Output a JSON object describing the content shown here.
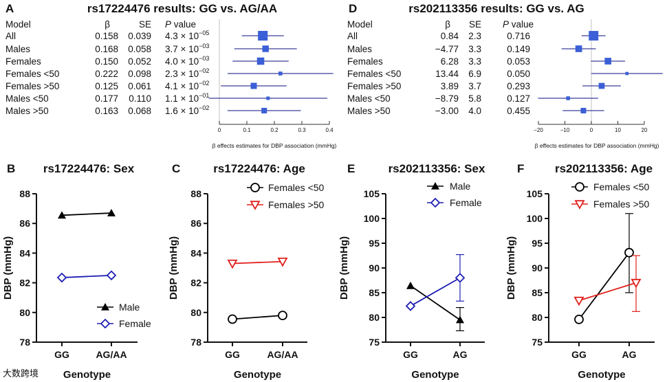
{
  "watermark": "大数跨境",
  "chart_data": [
    {
      "type": "forest",
      "panel": "A",
      "title": "rs17224476 results: GG vs. AG/AA",
      "headers": {
        "model": "Model",
        "beta": "β",
        "se": "SE",
        "p": "P",
        "p_suffix": " value"
      },
      "rows": [
        {
          "model": "All",
          "beta": 0.158,
          "beta_text": "0.158",
          "se_text": "0.039",
          "se": 0.039,
          "p": "4.3 × 10",
          "p_exp": "−05"
        },
        {
          "model": "Males",
          "beta": 0.168,
          "beta_text": "0.168",
          "se_text": "0.058",
          "se": 0.058,
          "p": "3.7 × 10",
          "p_exp": "−03"
        },
        {
          "model": "Females",
          "beta": 0.15,
          "beta_text": "0.150",
          "se_text": "0.052",
          "se": 0.052,
          "p": "4.0 × 10",
          "p_exp": "−03"
        },
        {
          "model": "Females <50",
          "beta": 0.222,
          "beta_text": "0.222",
          "se_text": "0.098",
          "se": 0.098,
          "p": "2.3 × 10",
          "p_exp": "−02"
        },
        {
          "model": "Females >50",
          "beta": 0.125,
          "beta_text": "0.125",
          "se_text": "0.061",
          "se": 0.061,
          "p": "4.1 × 10",
          "p_exp": "−02"
        },
        {
          "model": "Males <50",
          "beta": 0.177,
          "beta_text": "0.177",
          "se_text": "0.110",
          "se": 0.11,
          "p": "1.1 × 10",
          "p_exp": "−01"
        },
        {
          "model": "Males >50",
          "beta": 0.163,
          "beta_text": "0.163",
          "se_text": "0.068",
          "se": 0.068,
          "p": "1.6 × 10",
          "p_exp": "−02"
        }
      ],
      "xlim": [
        0,
        0.4
      ],
      "xticks": [
        "0",
        "0.1",
        "0.2",
        "0.3",
        "0.4"
      ],
      "xtick_values": [
        0,
        0.1,
        0.2,
        0.3,
        0.4
      ],
      "xlabel": "β effects estimates for DBP association (mmHg)",
      "color": "#3b5fd6"
    },
    {
      "type": "forest",
      "panel": "D",
      "title": "rs202113356 results: GG vs. AG",
      "headers": {
        "model": "Model",
        "beta": "β",
        "se": "SE",
        "p": "P",
        "p_suffix": " value"
      },
      "rows": [
        {
          "model": "All",
          "beta": 0.84,
          "beta_text": "0.84",
          "se": 2.3,
          "se_text": "2.3",
          "p": "0.716"
        },
        {
          "model": "Males",
          "beta": -4.77,
          "beta_text": "−4.77",
          "se": 3.3,
          "se_text": "3.3",
          "p": "0.149"
        },
        {
          "model": "Females",
          "beta": 6.28,
          "beta_text": "6.28",
          "se": 3.3,
          "se_text": "3.3",
          "p": "0.053"
        },
        {
          "model": "Females <50",
          "beta": 13.44,
          "beta_text": "13.44",
          "se": 6.9,
          "se_text": "6.9",
          "p": "0.050"
        },
        {
          "model": "Females >50",
          "beta": 3.89,
          "beta_text": "3.89",
          "se": 3.7,
          "se_text": "3.7",
          "p": "0.293"
        },
        {
          "model": "Males <50",
          "beta": -8.79,
          "beta_text": "−8.79",
          "se": 5.8,
          "se_text": "5.8",
          "p": "0.127"
        },
        {
          "model": "Males >50",
          "beta": -3.0,
          "beta_text": "−3.00",
          "se": 4.0,
          "se_text": "4.0",
          "p": "0.455"
        }
      ],
      "xlim": [
        -20,
        20
      ],
      "xticks": [
        "−20",
        "−10",
        "0",
        "10",
        "20"
      ],
      "xtick_values": [
        -20,
        -10,
        0,
        10,
        20
      ],
      "xlabel": "β effects estimates for DBP association (mmHg)",
      "color": "#3b5fd6"
    },
    {
      "type": "line",
      "panel": "B",
      "title": "rs17224476: Sex",
      "categories": [
        "GG",
        "AG/AA"
      ],
      "xlabel": "Genotype",
      "ylabel": "DBP (mmHg)",
      "ylim": [
        78,
        88
      ],
      "yticks": [
        "78",
        "80",
        "82",
        "84",
        "86",
        "88"
      ],
      "ytick_values": [
        78,
        80,
        82,
        84,
        86,
        88
      ],
      "legend_position": "bottom-right",
      "series": [
        {
          "name": "Male",
          "values": [
            86.55,
            86.7
          ],
          "marker": "triangle-filled",
          "color": "#000000"
        },
        {
          "name": "Female",
          "values": [
            82.35,
            82.5
          ],
          "marker": "diamond-open",
          "color": "#1f1fb4"
        }
      ]
    },
    {
      "type": "line",
      "panel": "C",
      "title": "rs17224476: Age",
      "categories": [
        "GG",
        "AG/AA"
      ],
      "xlabel": "Genotype",
      "ylabel": "DBP (mmHg)",
      "ylim": [
        78,
        88
      ],
      "yticks": [
        "78",
        "80",
        "82",
        "84",
        "86",
        "88"
      ],
      "ytick_values": [
        78,
        80,
        82,
        84,
        86,
        88
      ],
      "legend_position": "top-right",
      "series": [
        {
          "name": "Females <50",
          "values": [
            79.55,
            79.8
          ],
          "marker": "circle-open",
          "color": "#000000"
        },
        {
          "name": "Females >50",
          "values": [
            83.3,
            83.43
          ],
          "marker": "triangle-down-open",
          "color": "#e0201c"
        }
      ]
    },
    {
      "type": "line",
      "panel": "E",
      "title": "rs202113356: Sex",
      "categories": [
        "GG",
        "AG"
      ],
      "xlabel": "Genotype",
      "ylabel": "DBP (mmHg)",
      "ylim": [
        75,
        105
      ],
      "yticks": [
        "75",
        "80",
        "85",
        "90",
        "95",
        "100",
        "105"
      ],
      "ytick_values": [
        75,
        80,
        85,
        90,
        95,
        100,
        105
      ],
      "legend_position": "top",
      "series": [
        {
          "name": "Male",
          "values": [
            86.4,
            79.5
          ],
          "error_low": [
            null,
            77.3
          ],
          "error_high": [
            null,
            82.0
          ],
          "marker": "triangle-filled",
          "color": "#000000"
        },
        {
          "name": "Female",
          "values": [
            82.3,
            88.0
          ],
          "error_low": [
            null,
            83.3
          ],
          "error_high": [
            null,
            92.7
          ],
          "marker": "diamond-open",
          "color": "#1f1fb4"
        }
      ]
    },
    {
      "type": "line",
      "panel": "F",
      "title": "rs202113356: Age",
      "categories": [
        "GG",
        "AG"
      ],
      "xlabel": "Genotype",
      "ylabel": "DBP (mmHg)",
      "ylim": [
        75,
        105
      ],
      "yticks": [
        "75",
        "80",
        "85",
        "90",
        "95",
        "100",
        "105"
      ],
      "ytick_values": [
        75,
        80,
        85,
        90,
        95,
        100,
        105
      ],
      "legend_position": "top-right",
      "series": [
        {
          "name": "Females <50",
          "values": [
            79.6,
            93.1
          ],
          "error_low": [
            null,
            85.0
          ],
          "error_high": [
            null,
            101.0
          ],
          "marker": "circle-open",
          "color": "#000000"
        },
        {
          "name": "Females >50",
          "values": [
            83.4,
            87.0
          ],
          "error_low": [
            null,
            81.2
          ],
          "error_high": [
            null,
            92.5
          ],
          "marker": "triangle-down-open",
          "color": "#e0201c"
        }
      ]
    }
  ]
}
